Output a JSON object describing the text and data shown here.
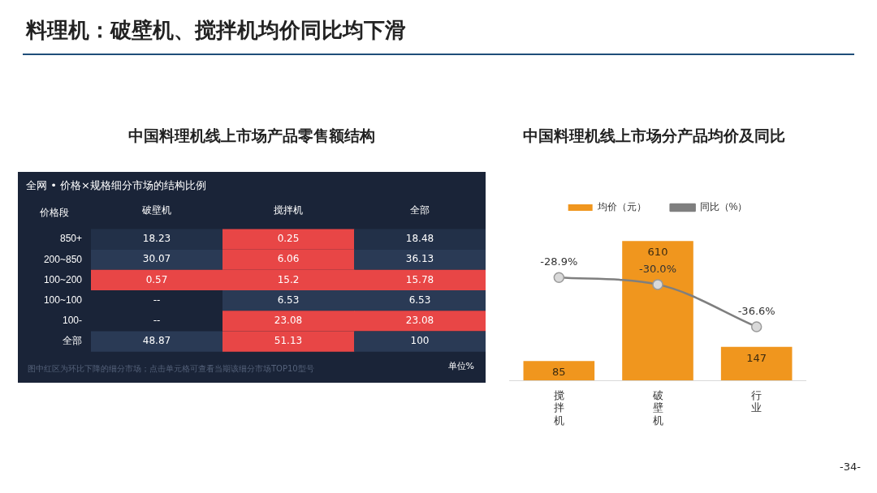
{
  "chart_data": [
    {
      "type": "heatmap",
      "title": "中国料理机线上市场产品零售额结构",
      "subtitle": "全网 • 价格×规格细分市场的结构比例",
      "ylabel": "价格段",
      "categories": [
        "破壁机",
        "搅拌机",
        "全部"
      ],
      "y_categories": [
        "850+",
        "200~850",
        "100~200",
        "100~100",
        "100-",
        "全部"
      ],
      "cells": [
        [
          18.23,
          0.25,
          18.48
        ],
        [
          30.07,
          6.06,
          36.13
        ],
        [
          0.57,
          15.2,
          15.78
        ],
        [
          null,
          6.53,
          6.53
        ],
        [
          null,
          23.08,
          23.08
        ],
        [
          48.87,
          51.13,
          100
        ]
      ],
      "cell_labels": [
        [
          "18.23",
          "0.25",
          "18.48"
        ],
        [
          "30.07",
          "6.06",
          "36.13"
        ],
        [
          "0.57",
          "15.2",
          "15.78"
        ],
        [
          "--",
          "6.53",
          "6.53"
        ],
        [
          "--",
          "23.08",
          "23.08"
        ],
        [
          "48.87",
          "51.13",
          "100"
        ]
      ],
      "colors": [
        [
          "#223048",
          "#e84646",
          "#223048"
        ],
        [
          "#2a3a55",
          "#e84646",
          "#2a3a55"
        ],
        [
          "#e84646",
          "#e84646",
          "#e84646"
        ],
        [
          null,
          "#2a3a55",
          "#2a3a55"
        ],
        [
          null,
          "#e84646",
          "#e84646"
        ],
        [
          "#2a3a55",
          "#e84646",
          "#2a3a55"
        ]
      ],
      "annotations": [
        "料理机：破壁机、搅拌机均价同比均下滑",
        "图中红区为环比下降的细分市场；点击单元格可查看当期该细分市场TOP10型号",
        "单位%"
      ]
    },
    {
      "type": "bar",
      "title": "中国料理机线上市场分产品均价及同比",
      "categories": [
        "搅拌机",
        "破壁机",
        "行业"
      ],
      "legend": "top",
      "tick_labels": "x",
      "grid": false,
      "marker": "circle",
      "series": [
        {
          "name": "均价（元）",
          "color": "#f0961e",
          "values": [
            85,
            610,
            147
          ],
          "value_labels": [
            "85",
            "610",
            "147"
          ]
        },
        {
          "name": "同比（%）",
          "type": "line",
          "axis": "y2",
          "color": "#7f7f7f",
          "values": [
            -28.9,
            -30.0,
            -36.6
          ],
          "value_labels": [
            "-28.9%",
            "-30.0%",
            "-36.6%"
          ]
        }
      ],
      "annotations": [
        "-34-"
      ]
    }
  ]
}
